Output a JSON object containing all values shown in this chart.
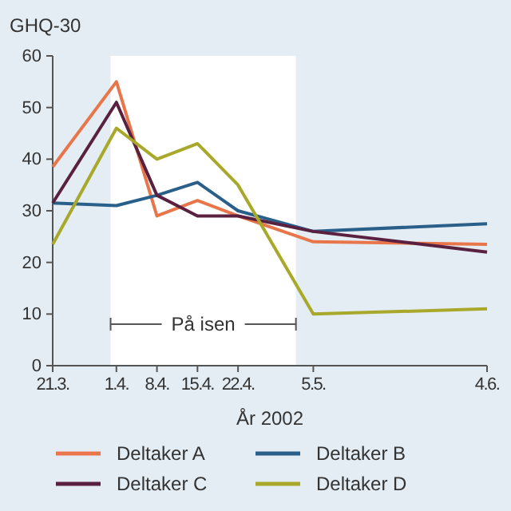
{
  "chart_data": {
    "type": "line",
    "ylabel": "GHQ-30",
    "xlabel": "År 2002",
    "x": [
      "2002-03-21",
      "2002-04-01",
      "2002-04-08",
      "2002-04-15",
      "2002-04-22",
      "2002-05-05",
      "2002-06-04"
    ],
    "series": [
      {
        "name": "Deltaker A",
        "color": "#e8764a",
        "values": [
          38.5,
          55,
          29,
          32,
          29,
          24,
          23.5
        ]
      },
      {
        "name": "Deltaker B",
        "color": "#2a5f8a",
        "values": [
          31.5,
          31,
          33,
          35.5,
          30,
          26,
          27.5
        ]
      },
      {
        "name": "Deltaker C",
        "color": "#5a2040",
        "values": [
          31.5,
          51,
          33,
          29,
          29,
          26,
          22
        ]
      },
      {
        "name": "Deltaker D",
        "color": "#a8a82a",
        "values": [
          23.5,
          46,
          40,
          43,
          35,
          10,
          11
        ]
      }
    ],
    "xlim": [
      "2002-03-21",
      "2002-06-04"
    ],
    "xticks": [
      {
        "value": "2002-03-21",
        "label": "21.3."
      },
      {
        "value": "2002-04-01",
        "label": "1.4."
      },
      {
        "value": "2002-04-08",
        "label": "8.4."
      },
      {
        "value": "2002-04-15",
        "label": "15.4."
      },
      {
        "value": "2002-04-22",
        "label": "22.4."
      },
      {
        "value": "2002-05-05",
        "label": "5.5."
      },
      {
        "value": "2002-06-04",
        "label": "4.6."
      }
    ],
    "ylim": [
      0,
      60
    ],
    "yticks": [
      0,
      10,
      20,
      30,
      40,
      50,
      60
    ],
    "bands": [
      {
        "axis": "x",
        "from": "2002-03-31",
        "to": "2002-05-02",
        "label": "På isen",
        "color": "#ffffff"
      }
    ],
    "grid": false,
    "legend": "bottom",
    "line_style": "solid",
    "marker": "none"
  }
}
